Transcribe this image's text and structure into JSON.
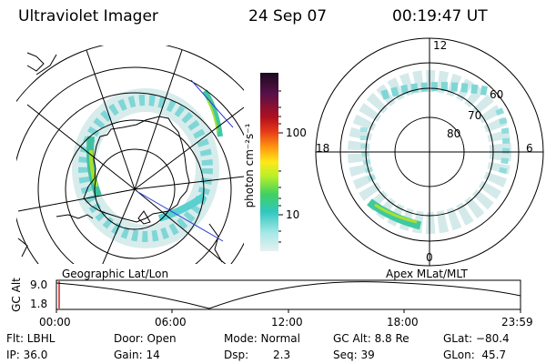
{
  "header": {
    "instrument": "Ultraviolet Imager",
    "date": "24 Sep 07",
    "time": "00:19:47 UT"
  },
  "left_map": {
    "caption": "Geographic Lat/Lon"
  },
  "right_map": {
    "caption": "Apex MLat/MLT",
    "mlt_labels": {
      "top": "12",
      "left": "18",
      "right": "6",
      "bottom": "0"
    },
    "lat_labels": [
      "60",
      "70",
      "80"
    ]
  },
  "colorbar": {
    "unit_label": "photon cm⁻²s⁻¹",
    "ticks": [
      "100",
      "10"
    ],
    "colors": [
      "#2a0a2a",
      "#6a1040",
      "#b01020",
      "#e03020",
      "#ff8a10",
      "#ffe010",
      "#c8f020",
      "#40d060",
      "#30c0c0",
      "#a0e8e8",
      "#e0f0f0"
    ]
  },
  "altitude_plot": {
    "ylabel": "GC Alt",
    "yticks": [
      "9.0",
      "1.8"
    ],
    "xticks": [
      "00:00",
      "06:00",
      "12:00",
      "18:00",
      "23:59"
    ]
  },
  "info": {
    "flt": "Flt: LBHL",
    "ip": "IP: 36.0",
    "door": "Door: Open",
    "gain": "Gain: 14",
    "mode": "Mode: Normal",
    "dsp_label": "Dsp:",
    "dsp_value": "2.3",
    "gc_alt": "GC Alt: 8.8 Re",
    "seq": "Seq: 39",
    "glat": "GLat: −80.4",
    "glon": "GLon:  45.7"
  }
}
